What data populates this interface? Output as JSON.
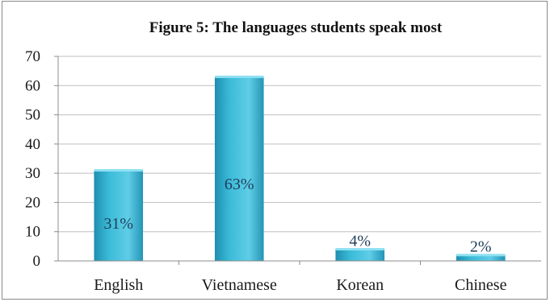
{
  "chart_data": {
    "type": "bar",
    "title": "Figure 5: The languages students speak most",
    "xlabel": "",
    "ylabel": "",
    "categories": [
      "English",
      "Vietnamese",
      "Korean",
      "Chinese"
    ],
    "values": [
      31,
      63,
      4,
      2
    ],
    "data_labels": [
      "31%",
      "63%",
      "4%",
      "2%"
    ],
    "ylim": [
      0,
      70
    ],
    "yticks": [
      0,
      10,
      20,
      30,
      40,
      50,
      60,
      70
    ],
    "ytick_labels": [
      "0",
      "10",
      "20",
      "30",
      "40",
      "50",
      "60",
      "70"
    ],
    "grid": true,
    "legend": "none",
    "colors": {
      "bar": "#3bbbd8",
      "bar_dark": "#1f8fb0",
      "grid": "#bfbfbf",
      "axis": "#8c8c8c"
    }
  }
}
